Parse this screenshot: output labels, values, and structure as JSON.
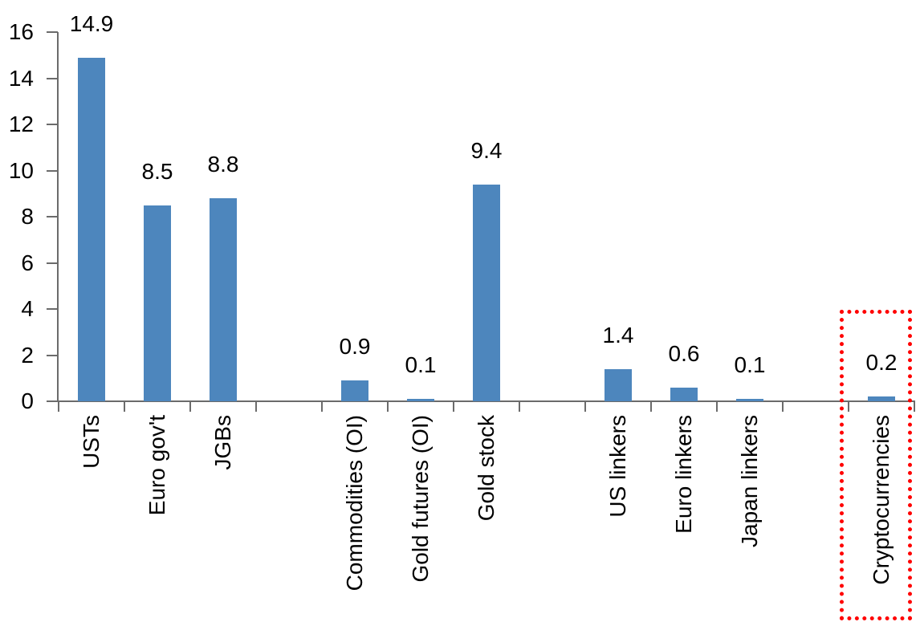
{
  "chart_data": {
    "type": "bar",
    "title": "",
    "xlabel": "",
    "ylabel": "",
    "categories": [
      "USTs",
      "Euro gov't",
      "JGBs",
      "",
      "Commodities (OI)",
      "Gold futures (OI)",
      "Gold stock",
      "",
      "US linkers",
      "Euro linkers",
      "Japan linkers",
      "",
      "Cryptocurrencies"
    ],
    "values": [
      14.9,
      8.5,
      8.8,
      null,
      0.9,
      0.1,
      9.4,
      null,
      1.4,
      0.6,
      0.1,
      null,
      0.2
    ],
    "data_labels": [
      "14.9",
      "8.5",
      "8.8",
      "",
      "0.9",
      "0.1",
      "9.4",
      "",
      "1.4",
      "0.6",
      "0.1",
      "",
      "0.2"
    ],
    "y_ticks": [
      0,
      2,
      4,
      6,
      8,
      10,
      12,
      14,
      16
    ],
    "ylim": [
      0,
      16
    ],
    "grid": false,
    "legend": "none",
    "bar_color": "#4d86bd",
    "axis_color": "#6b6b6b",
    "text_color": "#000000",
    "background_color": "#ffffff",
    "highlight": {
      "category": "Cryptocurrencies",
      "value": 0.2,
      "style": "red dotted rectangle",
      "color": "#ff0000"
    }
  }
}
